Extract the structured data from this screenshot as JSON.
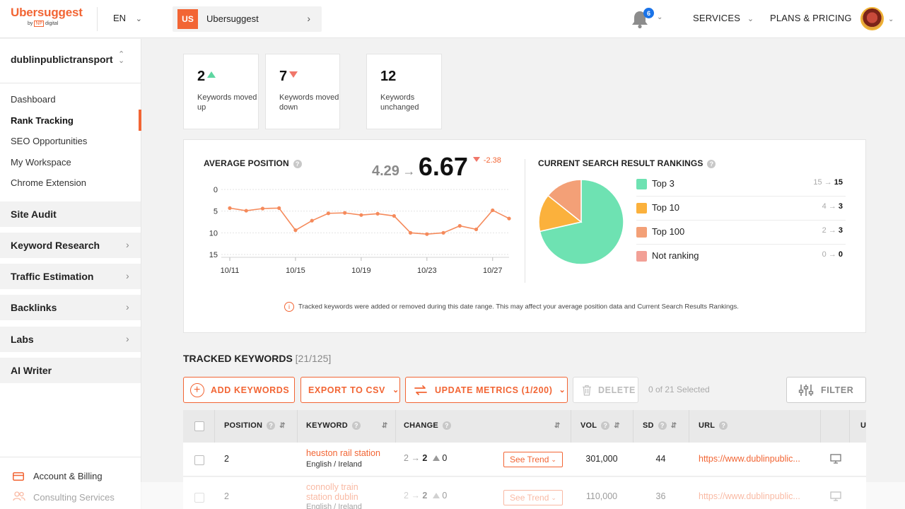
{
  "header": {
    "logo": "Ubersuggest",
    "logo_sub_prefix": "by",
    "logo_sub_np": "NP",
    "logo_sub_suffix": "digital",
    "language": "EN",
    "project_badge": "US",
    "project_name": "Ubersuggest",
    "notification_count": "6",
    "services_label": "SERVICES",
    "pricing_label": "PLANS & PRICING"
  },
  "sidebar": {
    "site_name": "dublinpublictransport",
    "sub_items": [
      "Dashboard",
      "Rank Tracking",
      "SEO Opportunities",
      "My Workspace",
      "Chrome Extension"
    ],
    "sections": [
      "Site Audit",
      "Keyword Research",
      "Traffic Estimation",
      "Backlinks",
      "Labs",
      "AI Writer"
    ],
    "bottom": [
      "Account & Billing",
      "Consulting Services"
    ]
  },
  "stats": [
    {
      "value": "2",
      "label": "Keywords moved up"
    },
    {
      "value": "7",
      "label": "Keywords moved down"
    },
    {
      "value": "12",
      "label": "Keywords unchanged"
    }
  ],
  "average_position": {
    "title": "AVERAGE POSITION",
    "previous": "4.29",
    "current": "6.67",
    "delta": "-2.38"
  },
  "chart_data": {
    "type": "line",
    "x": [
      "10/11",
      "10/12",
      "10/13",
      "10/14",
      "10/15",
      "10/16",
      "10/17",
      "10/18",
      "10/19",
      "10/20",
      "10/21",
      "10/22",
      "10/23",
      "10/24",
      "10/25",
      "10/26",
      "10/27",
      "10/28"
    ],
    "x_tick_labels": [
      "10/11",
      "10/15",
      "10/19",
      "10/23",
      "10/27"
    ],
    "y_tick_labels": [
      "0",
      "5",
      "10",
      "15"
    ],
    "values": [
      4.3,
      4.9,
      4.4,
      4.3,
      9.4,
      7.2,
      5.5,
      5.4,
      5.9,
      5.6,
      6.1,
      10,
      10.3,
      10,
      8.4,
      9.2,
      4.8,
      6.7
    ],
    "ylim": [
      0,
      15
    ],
    "y_inverted": true,
    "color": "#f58a5b",
    "grid": true
  },
  "rankings": {
    "title": "CURRENT SEARCH RESULT RANKINGS",
    "items": [
      {
        "label": "Top 3",
        "from": "15",
        "to": "15",
        "color": "#6ee2b2"
      },
      {
        "label": "Top 10",
        "from": "4",
        "to": "3",
        "color": "#fbb13c"
      },
      {
        "label": "Top 100",
        "from": "2",
        "to": "3",
        "color": "#f3a077"
      },
      {
        "label": "Not ranking",
        "from": "0",
        "to": "0",
        "color": "#f2a096"
      }
    ],
    "arrow": "→"
  },
  "note": "Tracked keywords were added or removed during this date range. This may affect your average position data and Current Search Results Rankings.",
  "tracked": {
    "title": "TRACKED KEYWORDS",
    "count": "[21/125]",
    "add_label": "ADD KEYWORDS",
    "export_label": "EXPORT TO CSV",
    "update_label": "UPDATE METRICS (1/200)",
    "delete_label": "DELETE",
    "selected_label": "0 of 21 Selected",
    "filter_label": "FILTER"
  },
  "table": {
    "headers": [
      "POSITION",
      "KEYWORD",
      "CHANGE",
      "VOL",
      "SD",
      "URL",
      "U"
    ],
    "trend_label": "See Trend",
    "rows": [
      {
        "position": "2",
        "keyword_line1": "heuston rail station",
        "keyword_line2": "",
        "locale": "English / Ireland",
        "change_from": "2",
        "change_to": "2",
        "change_delta": "0",
        "vol": "301,000",
        "sd": "44",
        "url": "https://www.dublinpublic..."
      },
      {
        "position": "2",
        "keyword_line1": "connolly train",
        "keyword_line2": "station dublin",
        "locale": "English / Ireland",
        "change_from": "2",
        "change_to": "2",
        "change_delta": "0",
        "vol": "110,000",
        "sd": "36",
        "url": "https://www.dublinpublic..."
      }
    ]
  }
}
